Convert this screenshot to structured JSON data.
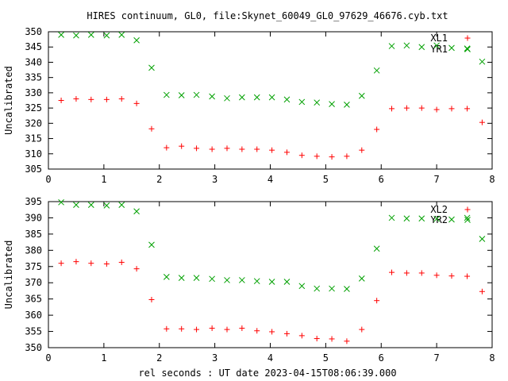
{
  "figure": {
    "title": "HIRES continuum, GL0, file:Skynet_60049_GL0_97629_46676.cyb.txt",
    "xlabel": "rel seconds : UT date 2023-04-15T08:06:39.000"
  },
  "colors": {
    "red": "#ff0000",
    "green": "#00a000",
    "frame": "#000000"
  },
  "chart_data": [
    {
      "type": "scatter",
      "ylabel": "Uncalibrated",
      "xlim": [
        0,
        8
      ],
      "ylim": [
        305,
        350
      ],
      "xticks": [
        0,
        1,
        2,
        3,
        4,
        5,
        6,
        7,
        8
      ],
      "yticks": [
        305,
        310,
        315,
        320,
        325,
        330,
        335,
        340,
        345,
        350
      ],
      "grid": false,
      "legend_position": "top-right",
      "series": [
        {
          "name": "XL1",
          "marker": "plus",
          "color": "#ff0000",
          "x": [
            0.23,
            0.5,
            0.77,
            1.05,
            1.32,
            1.59,
            1.86,
            2.13,
            2.4,
            2.67,
            2.95,
            3.22,
            3.49,
            3.76,
            4.03,
            4.3,
            4.57,
            4.84,
            5.11,
            5.38,
            5.65,
            5.92,
            6.19,
            6.46,
            6.73,
            7.0,
            7.27,
            7.55,
            7.82
          ],
          "y": [
            327.5,
            328,
            327.8,
            327.8,
            328,
            326.5,
            318.2,
            312,
            312.5,
            311.8,
            311.5,
            311.8,
            311.5,
            311.5,
            311.2,
            310.5,
            309.5,
            309.2,
            309,
            309.2,
            311.2,
            318,
            324.8,
            325,
            325,
            324.5,
            324.8,
            324.8,
            320.3
          ]
        },
        {
          "name": "YR1",
          "marker": "cross",
          "color": "#00a000",
          "x": [
            0.23,
            0.5,
            0.77,
            1.05,
            1.32,
            1.59,
            1.86,
            2.13,
            2.4,
            2.67,
            2.95,
            3.22,
            3.49,
            3.76,
            4.03,
            4.3,
            4.57,
            4.84,
            5.11,
            5.38,
            5.65,
            5.92,
            6.19,
            6.46,
            6.73,
            7.0,
            7.27,
            7.55,
            7.82
          ],
          "y": [
            349,
            348.8,
            349,
            348.8,
            349,
            347.2,
            338.2,
            329.3,
            329.2,
            329.3,
            328.8,
            328.2,
            328.5,
            328.5,
            328.5,
            327.8,
            327,
            326.8,
            326.3,
            326.1,
            329,
            337.3,
            345.3,
            345.5,
            345,
            345.5,
            344.7,
            344.5,
            340.2
          ]
        }
      ]
    },
    {
      "type": "scatter",
      "ylabel": "Uncalibrated",
      "xlim": [
        0,
        8
      ],
      "ylim": [
        350,
        395
      ],
      "xticks": [
        0,
        1,
        2,
        3,
        4,
        5,
        6,
        7,
        8
      ],
      "yticks": [
        350,
        355,
        360,
        365,
        370,
        375,
        380,
        385,
        390,
        395
      ],
      "grid": false,
      "legend_position": "top-right",
      "series": [
        {
          "name": "XL2",
          "marker": "plus",
          "color": "#ff0000",
          "x": [
            0.23,
            0.5,
            0.77,
            1.05,
            1.32,
            1.59,
            1.86,
            2.13,
            2.4,
            2.67,
            2.95,
            3.22,
            3.49,
            3.76,
            4.03,
            4.3,
            4.57,
            4.84,
            5.11,
            5.38,
            5.65,
            5.92,
            6.19,
            6.46,
            6.73,
            7.0,
            7.27,
            7.55,
            7.82
          ],
          "y": [
            376,
            376.5,
            376,
            375.8,
            376.3,
            374.3,
            364.8,
            355.8,
            355.8,
            355.6,
            356,
            355.6,
            356,
            355.2,
            354.9,
            354.3,
            353.7,
            352.8,
            352.7,
            352,
            355.6,
            364.5,
            373.2,
            373,
            373,
            372.3,
            372.1,
            372,
            367.3
          ]
        },
        {
          "name": "YR2",
          "marker": "cross",
          "color": "#00a000",
          "x": [
            0.23,
            0.5,
            0.77,
            1.05,
            1.32,
            1.59,
            1.86,
            2.13,
            2.4,
            2.67,
            2.95,
            3.22,
            3.49,
            3.76,
            4.03,
            4.3,
            4.57,
            4.84,
            5.11,
            5.38,
            5.65,
            5.92,
            6.19,
            6.46,
            6.73,
            7.0,
            7.27,
            7.55,
            7.82
          ],
          "y": [
            394.8,
            394,
            394,
            393.8,
            394,
            392,
            381.7,
            371.8,
            371.5,
            371.5,
            371.2,
            370.8,
            370.8,
            370.5,
            370.3,
            370.3,
            369,
            368.2,
            368.2,
            368.1,
            371.3,
            380.5,
            390,
            389.8,
            389.8,
            389.7,
            389.5,
            390,
            383.5
          ]
        }
      ]
    }
  ]
}
